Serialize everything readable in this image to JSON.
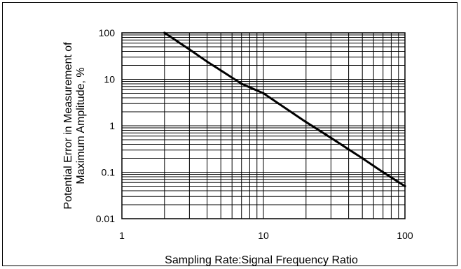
{
  "chart_data": {
    "type": "line",
    "title": "",
    "xlabel": "Sampling Rate:Signal Frequency Ratio",
    "ylabel_lines": [
      "Potential Error in Measurement of",
      "Maximum Amplitude, %"
    ],
    "x_scale": "log",
    "y_scale": "log",
    "xlim": [
      1,
      100
    ],
    "ylim": [
      0.01,
      100
    ],
    "x_ticks": [
      1,
      10,
      100
    ],
    "x_tick_labels": [
      "1",
      "10",
      "100"
    ],
    "y_ticks": [
      100,
      10,
      1,
      0.1,
      0.01
    ],
    "y_tick_labels": [
      "100",
      "10",
      "1",
      "0.1",
      "0.01"
    ],
    "grid": "major and minor",
    "legend": "none",
    "series": [
      {
        "x": [
          2,
          3,
          4,
          5,
          7,
          10,
          20,
          30,
          50,
          70,
          100
        ],
        "y": [
          100,
          44,
          24,
          15.5,
          8,
          5,
          1.2,
          0.55,
          0.2,
          0.1,
          0.05
        ]
      }
    ]
  },
  "colors": {
    "line": "#000000",
    "grid": "#000000",
    "background": "#ffffff"
  }
}
